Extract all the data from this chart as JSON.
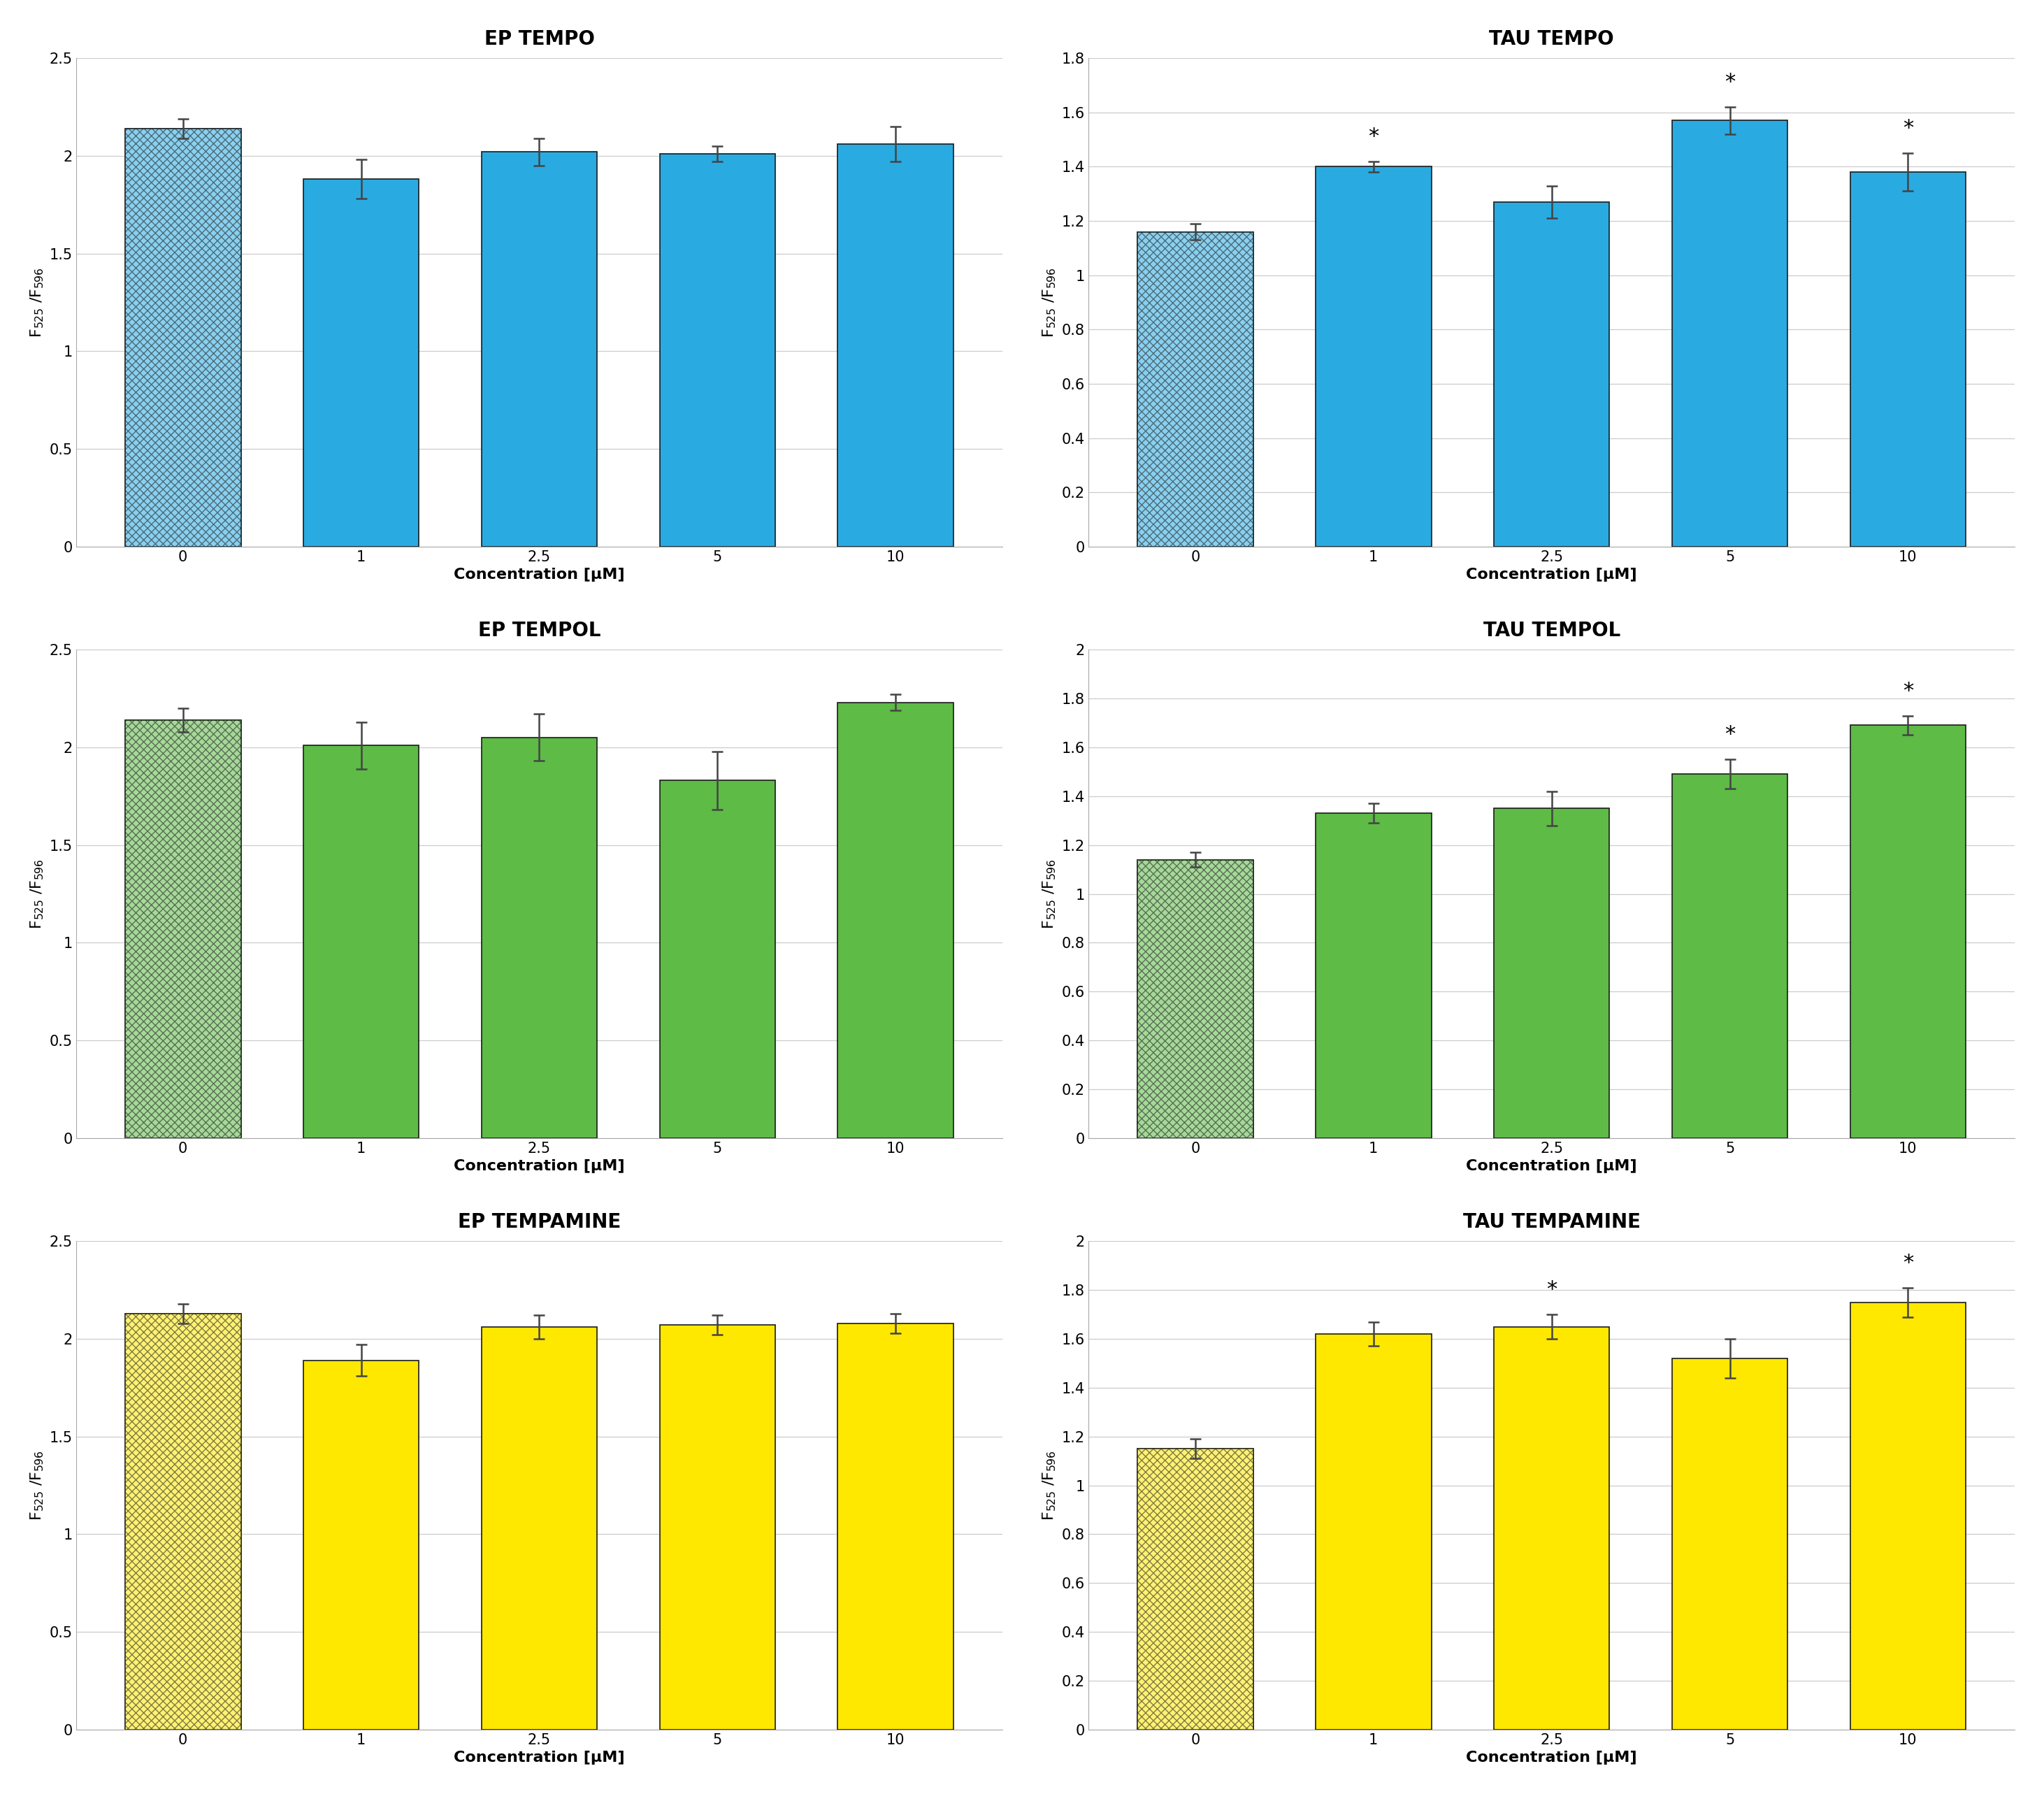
{
  "subplots": [
    {
      "title": "EP TEMPO",
      "color": "#29ABE2",
      "ylim": [
        0,
        2.5
      ],
      "yticks": [
        0,
        0.5,
        1.0,
        1.5,
        2.0,
        2.5
      ],
      "ytick_labels": [
        "0",
        "0.5",
        "1",
        "1.5",
        "2",
        "2.5"
      ],
      "values": [
        2.14,
        1.88,
        2.02,
        2.01,
        2.06
      ],
      "errors": [
        0.05,
        0.1,
        0.07,
        0.04,
        0.09
      ],
      "significance": [
        false,
        false,
        false,
        false,
        false
      ],
      "categories": [
        "0",
        "1",
        "2.5",
        "5",
        "10"
      ],
      "ylabel": "F$_{525}$ /F$_{596}$",
      "xlabel": "Concentration [μM]",
      "hatched_first": true
    },
    {
      "title": "TAU TEMPO",
      "color": "#29ABE2",
      "ylim": [
        0,
        1.8
      ],
      "yticks": [
        0,
        0.2,
        0.4,
        0.6,
        0.8,
        1.0,
        1.2,
        1.4,
        1.6,
        1.8
      ],
      "ytick_labels": [
        "0",
        "0.2",
        "0.4",
        "0.6",
        "0.8",
        "1",
        "1.2",
        "1.4",
        "1.6",
        "1.8"
      ],
      "values": [
        1.16,
        1.4,
        1.27,
        1.57,
        1.38
      ],
      "errors": [
        0.03,
        0.02,
        0.06,
        0.05,
        0.07
      ],
      "significance": [
        false,
        true,
        false,
        true,
        true
      ],
      "categories": [
        "0",
        "1",
        "2.5",
        "5",
        "10"
      ],
      "ylabel": "F$_{525}$ /F$_{596}$",
      "xlabel": "Concentration [μM]",
      "hatched_first": true
    },
    {
      "title": "EP TEMPOL",
      "color": "#5DBB46",
      "ylim": [
        0,
        2.5
      ],
      "yticks": [
        0,
        0.5,
        1.0,
        1.5,
        2.0,
        2.5
      ],
      "ytick_labels": [
        "0",
        "0.5",
        "1",
        "1.5",
        "2",
        "2.5"
      ],
      "values": [
        2.14,
        2.01,
        2.05,
        1.83,
        2.23
      ],
      "errors": [
        0.06,
        0.12,
        0.12,
        0.15,
        0.04
      ],
      "significance": [
        false,
        false,
        false,
        false,
        false
      ],
      "categories": [
        "0",
        "1",
        "2.5",
        "5",
        "10"
      ],
      "ylabel": "F$_{525}$ /F$_{596}$",
      "xlabel": "Concentration [μM]",
      "hatched_first": true
    },
    {
      "title": "TAU TEMPOL",
      "color": "#5DBB46",
      "ylim": [
        0,
        2.0
      ],
      "yticks": [
        0,
        0.2,
        0.4,
        0.6,
        0.8,
        1.0,
        1.2,
        1.4,
        1.6,
        1.8,
        2.0
      ],
      "ytick_labels": [
        "0",
        "0.2",
        "0.4",
        "0.6",
        "0.8",
        "1",
        "1.2",
        "1.4",
        "1.6",
        "1.8",
        "2"
      ],
      "values": [
        1.14,
        1.33,
        1.35,
        1.49,
        1.69
      ],
      "errors": [
        0.03,
        0.04,
        0.07,
        0.06,
        0.04
      ],
      "significance": [
        false,
        false,
        false,
        true,
        true
      ],
      "categories": [
        "0",
        "1",
        "2.5",
        "5",
        "10"
      ],
      "ylabel": "F$_{525}$ /F$_{596}$",
      "xlabel": "Concentration [μM]",
      "hatched_first": true
    },
    {
      "title": "EP TEMPAMINE",
      "color": "#FFE800",
      "ylim": [
        0,
        2.5
      ],
      "yticks": [
        0,
        0.5,
        1.0,
        1.5,
        2.0,
        2.5
      ],
      "ytick_labels": [
        "0",
        "0.5",
        "1",
        "1.5",
        "2",
        "2.5"
      ],
      "values": [
        2.13,
        1.89,
        2.06,
        2.07,
        2.08
      ],
      "errors": [
        0.05,
        0.08,
        0.06,
        0.05,
        0.05
      ],
      "significance": [
        false,
        false,
        false,
        false,
        false
      ],
      "categories": [
        "0",
        "1",
        "2.5",
        "5",
        "10"
      ],
      "ylabel": "F$_{525}$ /F$_{596}$",
      "xlabel": "Concentration [μM]",
      "hatched_first": true
    },
    {
      "title": "TAU TEMPAMINE",
      "color": "#FFE800",
      "ylim": [
        0,
        2.0
      ],
      "yticks": [
        0,
        0.2,
        0.4,
        0.6,
        0.8,
        1.0,
        1.2,
        1.4,
        1.6,
        1.8,
        2.0
      ],
      "ytick_labels": [
        "0",
        "0.2",
        "0.4",
        "0.6",
        "0.8",
        "1",
        "1.2",
        "1.4",
        "1.6",
        "1.8",
        "2"
      ],
      "values": [
        1.15,
        1.62,
        1.65,
        1.52,
        1.75
      ],
      "errors": [
        0.04,
        0.05,
        0.05,
        0.08,
        0.06
      ],
      "significance": [
        false,
        false,
        true,
        false,
        true
      ],
      "categories": [
        "0",
        "1",
        "2.5",
        "5",
        "10"
      ],
      "ylabel": "F$_{525}$ /F$_{596}$",
      "xlabel": "Concentration [μM]",
      "hatched_first": true
    }
  ],
  "background_color": "#ffffff",
  "bar_edge_color": "#1a1a1a",
  "error_color": "#444444",
  "title_fontsize": 20,
  "label_fontsize": 16,
  "tick_fontsize": 15,
  "sig_fontsize": 22,
  "bar_width": 0.65,
  "grid_color": "#cccccc"
}
